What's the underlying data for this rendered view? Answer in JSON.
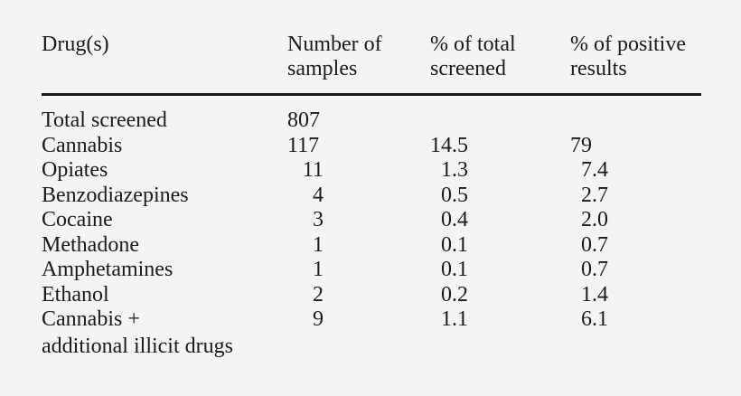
{
  "headers": {
    "drug": "Drug(s)",
    "samples_line1": "Number of",
    "samples_line2": "samples",
    "pct_total_line1": "% of total",
    "pct_total_line2": "screened",
    "pct_pos_line1": "% of positive",
    "pct_pos_line2": "results"
  },
  "rows": [
    {
      "drug": "Total screened",
      "samples": "807",
      "pct_total": "",
      "pct_pos": ""
    },
    {
      "drug": "Cannabis",
      "samples": "117",
      "pct_total": "14.5",
      "pct_pos": "79"
    },
    {
      "drug": "Opiates",
      "samples": "11",
      "pct_total": "1.3",
      "pct_pos": "7.4"
    },
    {
      "drug": "Benzodiazepines",
      "samples": "4",
      "pct_total": "0.5",
      "pct_pos": "2.7"
    },
    {
      "drug": "Cocaine",
      "samples": "3",
      "pct_total": "0.4",
      "pct_pos": "2.0"
    },
    {
      "drug": "Methadone",
      "samples": "1",
      "pct_total": "0.1",
      "pct_pos": "0.7"
    },
    {
      "drug": "Amphetamines",
      "samples": "1",
      "pct_total": "0.1",
      "pct_pos": "0.7"
    },
    {
      "drug": "Ethanol",
      "samples": "2",
      "pct_total": "0.2",
      "pct_pos": "1.4"
    },
    {
      "drug": "Cannabis +",
      "samples": "9",
      "pct_total": "1.1",
      "pct_pos": "6.1"
    }
  ],
  "last_row_continuation": "additional illicit drugs"
}
